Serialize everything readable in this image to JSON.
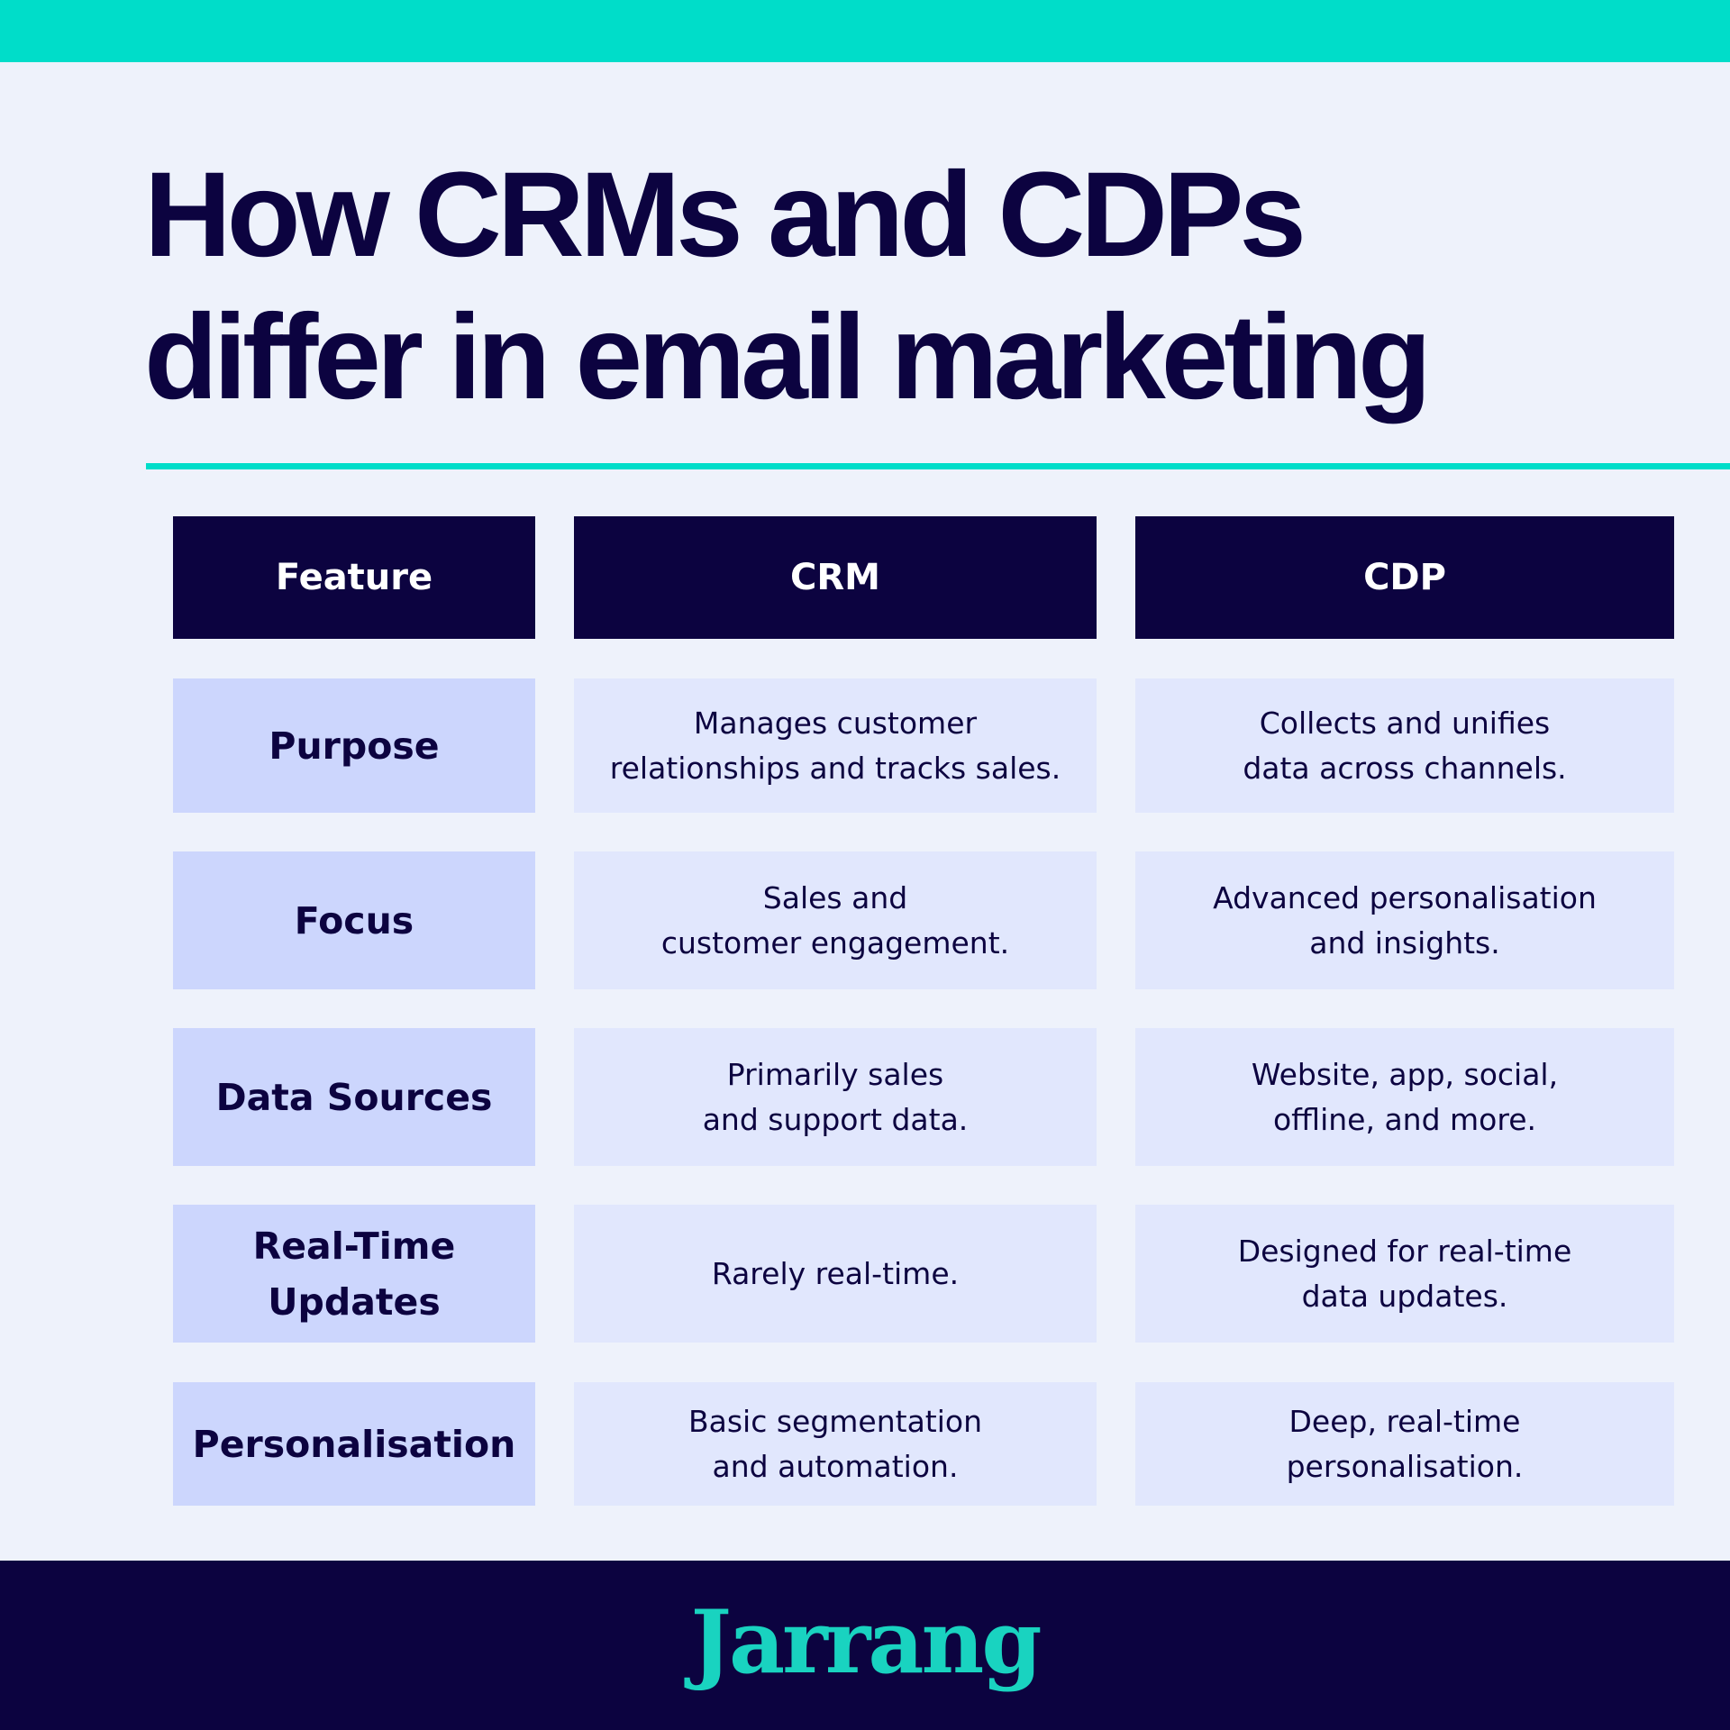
{
  "title": {
    "line1": "How CRMs and CDPs",
    "line2": "differ in email marketing"
  },
  "colors": {
    "accent": "#00ddc9",
    "navy": "#0c0340",
    "feature_cell": "#ccd6fd",
    "value_cell": "#e1e7fd",
    "background": "#eef2fb"
  },
  "table": {
    "headers": [
      "Feature",
      "CRM",
      "CDP"
    ],
    "rows": [
      {
        "feature": "Purpose",
        "crm": "Manages customer\nrelationships and tracks sales.",
        "cdp": "Collects and unifies\ndata across channels."
      },
      {
        "feature": "Focus",
        "crm": "Sales and\ncustomer engagement.",
        "cdp": "Advanced personalisation\nand insights."
      },
      {
        "feature": "Data Sources",
        "crm": "Primarily sales\nand support data.",
        "cdp": "Website, app, social,\noffline, and more."
      },
      {
        "feature": "Real-Time\nUpdates",
        "crm": "Rarely real-time.",
        "cdp": "Designed for real-time\ndata updates."
      },
      {
        "feature": "Personalisation",
        "crm": "Basic segmentation\nand automation.",
        "cdp": "Deep, real-time\npersonalisation."
      }
    ]
  },
  "footer": {
    "logo": "Jarrang"
  }
}
